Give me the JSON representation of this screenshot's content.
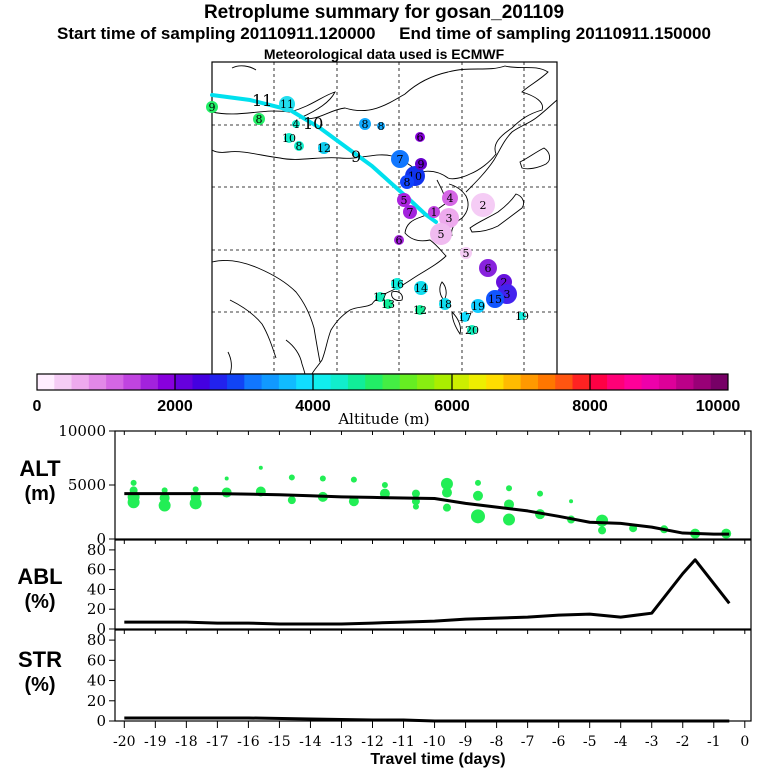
{
  "header": {
    "title": "Retroplume summary for gosan_201109",
    "start_label": "Start time of sampling 20110911.120000",
    "end_label": "End time of sampling 20110911.150000",
    "met_label": "Meteorological data used is ECMWF"
  },
  "colorbar": {
    "label": "Altitude (m)",
    "ticks": [
      "0",
      "2000",
      "4000",
      "6000",
      "8000",
      "10000"
    ],
    "colors": [
      "#ffeeff",
      "#f5ccf5",
      "#eeaaee",
      "#e288e8",
      "#d466e4",
      "#c044e0",
      "#a322dd",
      "#8800dd",
      "#6600dd",
      "#4400e0",
      "#2222ee",
      "#1144f5",
      "#1177ff",
      "#1199ff",
      "#11bbff",
      "#11ddff",
      "#11eeee",
      "#11eecc",
      "#11ee99",
      "#22ee66",
      "#44ee44",
      "#66ee22",
      "#88ee11",
      "#aaee00",
      "#ccee00",
      "#eeee00",
      "#ffdd00",
      "#ffbb00",
      "#ff9900",
      "#ff7700",
      "#ff5511",
      "#ff2222",
      "#ff0044",
      "#ff0077",
      "#ff0099",
      "#ee00aa",
      "#dd0099",
      "#bb0088",
      "#990077",
      "#770066"
    ]
  },
  "map": {
    "markers": [
      "11",
      "9",
      "8",
      "4",
      "10",
      "8",
      "12",
      "8",
      "8",
      "7",
      "6",
      "10",
      "9",
      "8",
      "5",
      "7",
      "2",
      "3",
      "1",
      "4",
      "5",
      "6",
      "5",
      "6",
      "2",
      "3",
      "15",
      "16",
      "17",
      "13",
      "14",
      "18",
      "12",
      "19",
      "17",
      "20",
      "19"
    ],
    "track_labels": [
      "11",
      "10",
      "9"
    ]
  },
  "chart_data": [
    {
      "type": "line",
      "title": "ALT (m)",
      "panel_label_1": "ALT",
      "panel_label_2": "(m)",
      "x": [
        -20,
        -19,
        -18,
        -17,
        -16,
        -15,
        -14,
        -13,
        -12,
        -11,
        -10,
        -9,
        -8,
        -7,
        -6,
        -5,
        -4,
        -3,
        -2,
        -1,
        -0.5
      ],
      "values": [
        4200,
        4200,
        4200,
        4200,
        4150,
        4100,
        4000,
        3900,
        3850,
        3800,
        3750,
        3300,
        2950,
        2600,
        2100,
        1550,
        1450,
        1100,
        550,
        450,
        450
      ],
      "scatter_x": [
        -19.7,
        -19.7,
        -19.7,
        -19.7,
        -18.7,
        -18.7,
        -18.7,
        -17.7,
        -17.7,
        -17.7,
        -16.7,
        -16.7,
        -15.6,
        -15.6,
        -14.6,
        -14.6,
        -13.6,
        -13.6,
        -12.6,
        -12.6,
        -11.6,
        -11.6,
        -10.6,
        -10.6,
        -10.6,
        -9.6,
        -9.6,
        -9.6,
        -8.6,
        -8.6,
        -8.6,
        -7.6,
        -7.6,
        -7.6,
        -6.6,
        -6.6,
        -5.6,
        -5.6,
        -4.6,
        -4.6,
        -3.6,
        -2.6,
        -1.6,
        -0.6
      ],
      "scatter_y": [
        5200,
        4500,
        3900,
        3400,
        4500,
        3800,
        3100,
        4600,
        3900,
        3300,
        5600,
        4300,
        6600,
        4400,
        5700,
        3600,
        5600,
        3900,
        5500,
        3500,
        5000,
        4200,
        4200,
        3500,
        3000,
        5100,
        4300,
        2900,
        5200,
        4000,
        2100,
        4700,
        3200,
        1800,
        4200,
        2300,
        3500,
        1800,
        1700,
        800,
        1000,
        900,
        500,
        500
      ],
      "scatter_r": [
        3,
        4,
        6,
        6,
        3,
        5,
        6,
        3,
        5,
        6,
        2,
        5,
        2,
        5,
        3,
        4,
        3,
        5,
        3,
        5,
        3,
        5,
        4,
        4,
        3,
        6,
        5,
        4,
        3,
        5,
        7,
        3,
        5,
        6,
        3,
        5,
        2,
        4,
        6,
        4,
        4,
        4,
        5,
        5
      ],
      "xlim": [
        -20.3,
        0.2
      ],
      "ylim": [
        0,
        10000
      ],
      "y_ticks": [
        0,
        5000,
        10000
      ],
      "line_color": "#000000",
      "point_color": "#22ee55"
    },
    {
      "type": "line",
      "title": "ABL (%)",
      "panel_label_1": "ABL",
      "panel_label_2": "(%)",
      "x": [
        -20,
        -19,
        -18,
        -17,
        -16,
        -15,
        -14,
        -13,
        -12,
        -11,
        -10,
        -9,
        -8,
        -7,
        -6,
        -5,
        -4,
        -3,
        -2,
        -1.6,
        -0.5
      ],
      "values": [
        7,
        7,
        7,
        6,
        6,
        5,
        5,
        5,
        6,
        7,
        8,
        10,
        11,
        12,
        14,
        15,
        12,
        16,
        56,
        70,
        26
      ],
      "xlim": [
        -20.3,
        0.2
      ],
      "ylim": [
        0,
        90
      ],
      "y_ticks": [
        0,
        20,
        40,
        60,
        80
      ],
      "line_color": "#000000"
    },
    {
      "type": "line",
      "title": "STR (%)",
      "panel_label_1": "STR",
      "panel_label_2": "(%)",
      "x": [
        -20,
        -18,
        -16,
        -14,
        -12,
        -11,
        -10,
        -0.5
      ],
      "values": [
        3,
        3,
        3,
        2,
        1,
        1,
        0,
        0
      ],
      "xlim": [
        -20.3,
        0.2
      ],
      "ylim": [
        0,
        90
      ],
      "y_ticks": [
        0,
        20,
        40,
        60,
        80
      ],
      "line_color": "#000000",
      "xlabel": "Travel time (days)",
      "x_ticks": [
        -20,
        -19,
        -18,
        -17,
        -16,
        -15,
        -14,
        -13,
        -12,
        -11,
        -10,
        -9,
        -8,
        -7,
        -6,
        -5,
        -4,
        -3,
        -2,
        -1,
        0
      ]
    }
  ]
}
